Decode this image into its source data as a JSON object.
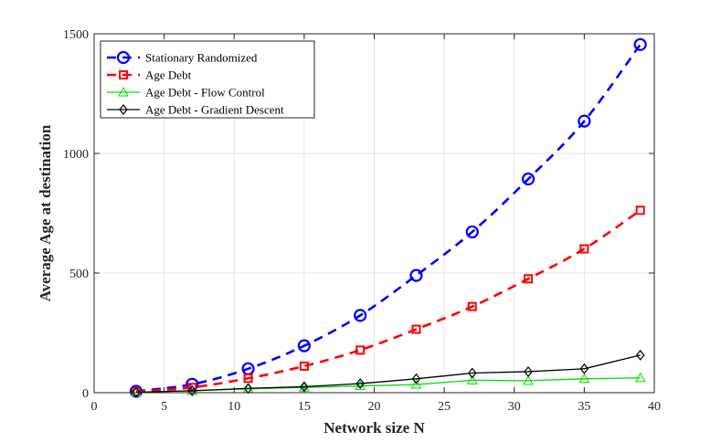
{
  "chart_data": {
    "type": "line",
    "xlabel": "Network size N",
    "ylabel": "Average Age at destination",
    "xlim": [
      0,
      40
    ],
    "ylim": [
      0,
      1500
    ],
    "xticks": [
      0,
      5,
      10,
      15,
      20,
      25,
      30,
      35,
      40
    ],
    "yticks": [
      0,
      500,
      1000,
      1500
    ],
    "grid": true,
    "legend_position": "top-left",
    "x": [
      3,
      7,
      11,
      15,
      19,
      23,
      27,
      31,
      35,
      39
    ],
    "series": [
      {
        "name": "Stationary Randomized",
        "color": "#0000ff",
        "line_style": "dashed",
        "marker": "circle",
        "values": [
          6,
          35,
          100,
          196,
          323,
          490,
          672,
          893,
          1135,
          1455
        ]
      },
      {
        "name": "Age Debt",
        "color": "#ff0000",
        "line_style": "dashed",
        "marker": "square",
        "values": [
          4,
          22,
          60,
          111,
          178,
          265,
          360,
          476,
          601,
          762
        ]
      },
      {
        "name": "Age Debt - Flow Control",
        "color": "#00dd00",
        "line_style": "solid",
        "marker": "triangle",
        "values": [
          2,
          8,
          16,
          22,
          28,
          34,
          52,
          50,
          58,
          62
        ]
      },
      {
        "name": "Age Debt - Gradient Descent",
        "color": "#000000",
        "line_style": "solid",
        "marker": "diamond",
        "values": [
          2,
          8,
          18,
          25,
          38,
          58,
          82,
          88,
          100,
          157
        ]
      }
    ]
  }
}
